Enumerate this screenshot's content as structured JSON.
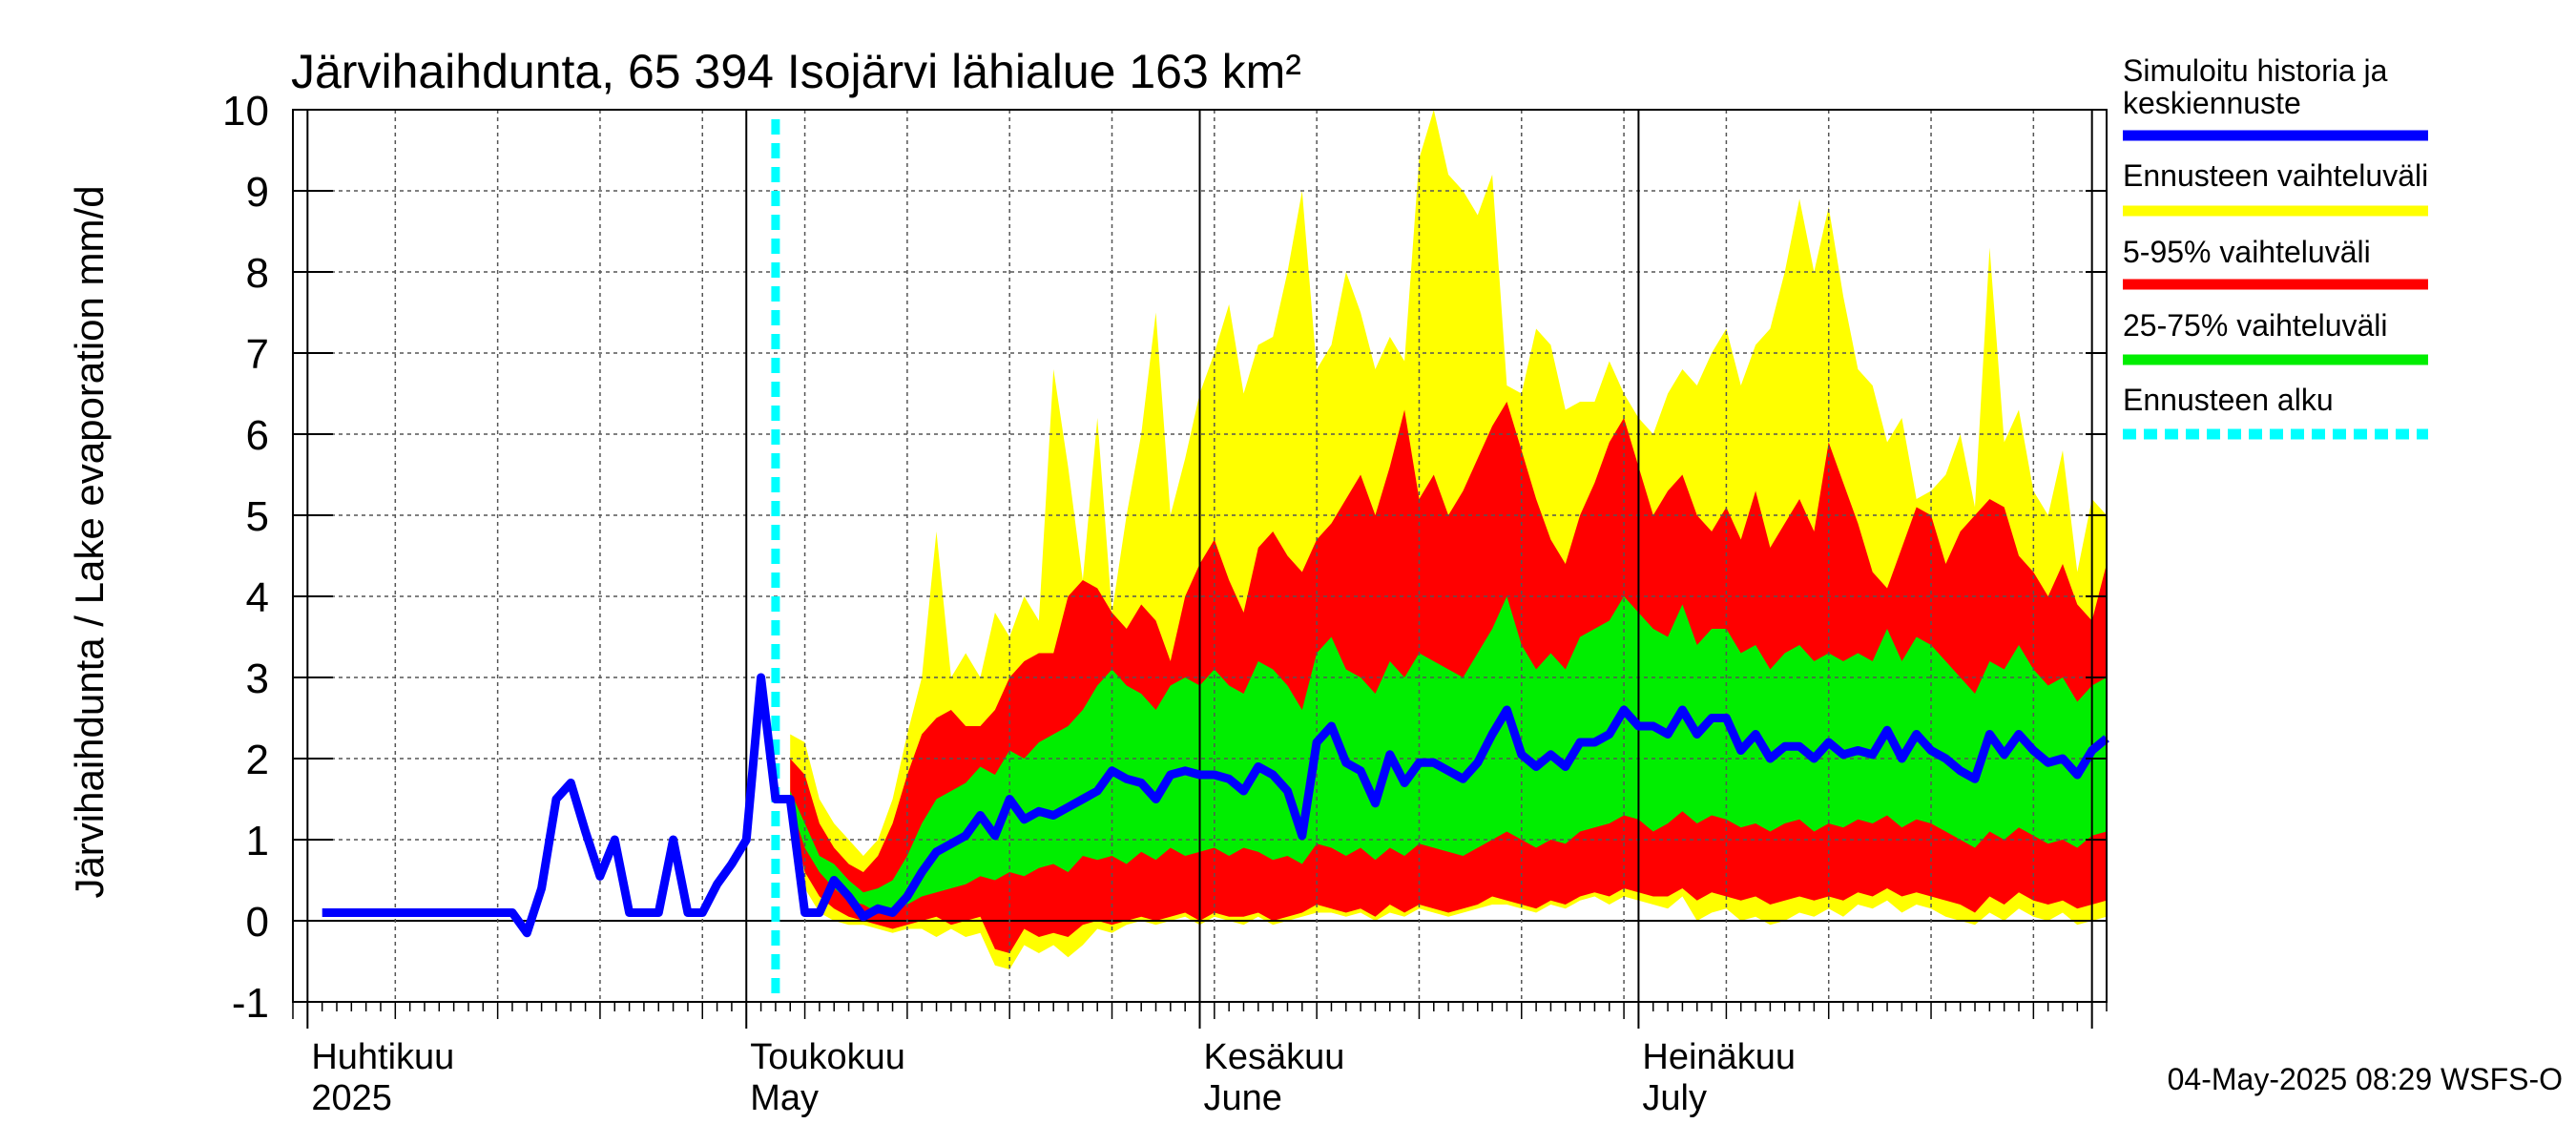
{
  "chart_data": {
    "type": "area",
    "title": "Järvihaihdunta, 65 394 Isojärvi lähialue 163 km²",
    "ylabel": "Järvihaihdunta / Lake evaporation   mm/d",
    "ylim": [
      -1,
      10
    ],
    "yticks": [
      -1,
      0,
      1,
      2,
      3,
      4,
      5,
      6,
      7,
      8,
      9,
      10
    ],
    "x_start": "2025-03-31",
    "x_end": "2025-08-02",
    "forecast_start": "2025-05-04",
    "month_labels": [
      {
        "date": "2025-04-01",
        "line1": "Huhtikuu",
        "line2": "2025"
      },
      {
        "date": "2025-05-01",
        "line1": "Toukokuu",
        "line2": "May"
      },
      {
        "date": "2025-06-01",
        "line1": "Kesäkuu",
        "line2": "June"
      },
      {
        "date": "2025-07-01",
        "line1": "Heinäkuu",
        "line2": "July"
      }
    ],
    "history": {
      "name": "Simuloitu historia ja keskiennuste",
      "values": [
        0.1,
        0.1,
        0.1,
        0.1,
        0.1,
        0.1,
        0.1,
        0.1,
        0.1,
        0.1,
        0.1,
        0.1,
        0.1,
        0.1,
        -0.15,
        0.4,
        1.5,
        1.7,
        1.1,
        0.55,
        1.0,
        0.1,
        0.1,
        0.1,
        1.0,
        0.1,
        0.1,
        0.45,
        0.7,
        1.0,
        3.0,
        1.5
      ]
    },
    "forecast": {
      "median": [
        1.5,
        0.1,
        0.1,
        0.5,
        0.3,
        0.05,
        0.15,
        0.1,
        0.3,
        0.6,
        0.85,
        0.95,
        1.05,
        1.3,
        1.05,
        1.5,
        1.25,
        1.35,
        1.3,
        1.4,
        1.5,
        1.6,
        1.85,
        1.75,
        1.7,
        1.5,
        1.8,
        1.85,
        1.8,
        1.8,
        1.75,
        1.6,
        1.9,
        1.8,
        1.6,
        1.05,
        2.2,
        2.4,
        1.95,
        1.85,
        1.45,
        2.05,
        1.7,
        1.95,
        1.95,
        1.85,
        1.75,
        1.95,
        2.3,
        2.6,
        2.05,
        1.9,
        2.05,
        1.9,
        2.2,
        2.2,
        2.3,
        2.6,
        2.4,
        2.4,
        2.3,
        2.6,
        2.3,
        2.5,
        2.5,
        2.1,
        2.3,
        2.0,
        2.15,
        2.15,
        2.0,
        2.2,
        2.05,
        2.1,
        2.05,
        2.35,
        2.0,
        2.3,
        2.1,
        2.0,
        1.85,
        1.75,
        2.3,
        2.05,
        2.3,
        2.1,
        1.95,
        2.0,
        1.8,
        2.1,
        2.25
      ],
      "p25": [
        1.45,
        0.9,
        0.6,
        0.4,
        0.25,
        0.2,
        0.1,
        0.15,
        0.2,
        0.3,
        0.35,
        0.4,
        0.45,
        0.55,
        0.5,
        0.6,
        0.55,
        0.65,
        0.7,
        0.6,
        0.8,
        0.75,
        0.8,
        0.7,
        0.85,
        0.75,
        0.9,
        0.8,
        0.85,
        0.9,
        0.8,
        0.9,
        0.85,
        0.75,
        0.8,
        0.7,
        0.95,
        0.9,
        0.8,
        0.9,
        0.75,
        0.9,
        0.8,
        0.95,
        0.9,
        0.85,
        0.8,
        0.9,
        1.0,
        1.1,
        1.0,
        0.9,
        1.0,
        0.95,
        1.1,
        1.15,
        1.2,
        1.3,
        1.25,
        1.1,
        1.2,
        1.35,
        1.2,
        1.3,
        1.25,
        1.15,
        1.2,
        1.1,
        1.2,
        1.25,
        1.1,
        1.2,
        1.15,
        1.25,
        1.2,
        1.3,
        1.15,
        1.25,
        1.2,
        1.1,
        1.0,
        0.9,
        1.1,
        1.0,
        1.15,
        1.05,
        0.95,
        1.0,
        0.9,
        1.05,
        1.1
      ],
      "p75": [
        1.6,
        1.2,
        0.8,
        0.7,
        0.5,
        0.35,
        0.4,
        0.5,
        0.8,
        1.2,
        1.5,
        1.6,
        1.7,
        1.9,
        1.8,
        2.1,
        2.0,
        2.2,
        2.3,
        2.4,
        2.6,
        2.9,
        3.1,
        2.9,
        2.8,
        2.6,
        2.9,
        3.0,
        2.9,
        3.1,
        2.9,
        2.8,
        3.2,
        3.1,
        2.9,
        2.6,
        3.3,
        3.5,
        3.1,
        3.0,
        2.8,
        3.2,
        3.0,
        3.3,
        3.2,
        3.1,
        3.0,
        3.3,
        3.6,
        4.0,
        3.4,
        3.1,
        3.3,
        3.1,
        3.5,
        3.6,
        3.7,
        4.0,
        3.8,
        3.6,
        3.5,
        3.9,
        3.4,
        3.6,
        3.6,
        3.3,
        3.4,
        3.1,
        3.3,
        3.4,
        3.2,
        3.3,
        3.2,
        3.3,
        3.2,
        3.6,
        3.2,
        3.5,
        3.4,
        3.2,
        3.0,
        2.8,
        3.2,
        3.1,
        3.4,
        3.1,
        2.9,
        3.0,
        2.7,
        2.9,
        3.0
      ],
      "p5": [
        1.4,
        0.6,
        0.3,
        0.15,
        0.05,
        0.0,
        -0.05,
        -0.1,
        -0.05,
        0.0,
        0.05,
        -0.05,
        0.0,
        0.05,
        -0.35,
        -0.4,
        -0.1,
        -0.2,
        -0.15,
        -0.2,
        -0.05,
        0.0,
        -0.05,
        0.0,
        0.05,
        0.0,
        0.05,
        0.1,
        0.0,
        0.1,
        0.05,
        0.05,
        0.1,
        0.0,
        0.05,
        0.1,
        0.2,
        0.15,
        0.1,
        0.15,
        0.05,
        0.2,
        0.1,
        0.2,
        0.15,
        0.1,
        0.15,
        0.2,
        0.3,
        0.25,
        0.2,
        0.15,
        0.25,
        0.2,
        0.3,
        0.35,
        0.3,
        0.4,
        0.35,
        0.3,
        0.3,
        0.4,
        0.25,
        0.35,
        0.3,
        0.25,
        0.3,
        0.2,
        0.25,
        0.3,
        0.25,
        0.3,
        0.25,
        0.35,
        0.3,
        0.4,
        0.3,
        0.35,
        0.3,
        0.25,
        0.2,
        0.1,
        0.3,
        0.2,
        0.35,
        0.25,
        0.2,
        0.25,
        0.15,
        0.2,
        0.25
      ],
      "p95": [
        2.0,
        1.8,
        1.2,
        0.9,
        0.7,
        0.6,
        0.8,
        1.2,
        1.8,
        2.3,
        2.5,
        2.6,
        2.4,
        2.4,
        2.6,
        3.0,
        3.2,
        3.3,
        3.3,
        4.0,
        4.2,
        4.1,
        3.8,
        3.6,
        3.9,
        3.7,
        3.2,
        4.0,
        4.4,
        4.7,
        4.2,
        3.8,
        4.6,
        4.8,
        4.5,
        4.3,
        4.7,
        4.9,
        5.2,
        5.5,
        5.0,
        5.6,
        6.3,
        5.2,
        5.5,
        5.0,
        5.3,
        5.7,
        6.1,
        6.4,
        5.8,
        5.2,
        4.7,
        4.4,
        5.0,
        5.4,
        5.9,
        6.2,
        5.6,
        5.0,
        5.3,
        5.5,
        5.0,
        4.8,
        5.1,
        4.7,
        5.3,
        4.6,
        4.9,
        5.2,
        4.8,
        5.9,
        5.4,
        4.9,
        4.3,
        4.1,
        4.6,
        5.1,
        5.0,
        4.4,
        4.8,
        5.0,
        5.2,
        5.1,
        4.5,
        4.3,
        4.0,
        4.4,
        3.9,
        3.7,
        4.4
      ],
      "min": [
        1.3,
        0.4,
        0.1,
        0.0,
        -0.05,
        -0.05,
        -0.1,
        -0.15,
        -0.1,
        -0.1,
        -0.2,
        -0.1,
        -0.2,
        -0.15,
        -0.55,
        -0.6,
        -0.3,
        -0.4,
        -0.3,
        -0.45,
        -0.3,
        -0.1,
        -0.15,
        -0.05,
        0.0,
        -0.05,
        0.0,
        0.05,
        -0.05,
        0.05,
        0.0,
        -0.05,
        0.05,
        -0.05,
        0.0,
        0.05,
        0.1,
        0.1,
        0.05,
        0.1,
        0.0,
        0.1,
        0.05,
        0.15,
        0.1,
        0.05,
        0.1,
        0.15,
        0.2,
        0.2,
        0.15,
        0.1,
        0.2,
        0.15,
        0.25,
        0.3,
        0.2,
        0.3,
        0.25,
        0.2,
        0.15,
        0.3,
        0.0,
        0.1,
        0.15,
        0.0,
        0.05,
        -0.05,
        0.0,
        0.1,
        0.05,
        0.15,
        0.05,
        0.2,
        0.15,
        0.25,
        0.1,
        0.2,
        0.15,
        0.05,
        0.0,
        -0.05,
        0.1,
        0.0,
        0.15,
        0.05,
        0.0,
        0.1,
        -0.05,
        0.0,
        0.05
      ],
      "max": [
        2.3,
        2.2,
        1.5,
        1.2,
        1.0,
        0.8,
        1.0,
        1.5,
        2.3,
        3.0,
        4.8,
        3.0,
        3.3,
        3.0,
        3.8,
        3.5,
        4.0,
        3.7,
        6.8,
        5.6,
        4.2,
        6.2,
        3.8,
        5.0,
        6.0,
        7.5,
        5.0,
        5.7,
        6.5,
        7.0,
        7.6,
        6.5,
        7.1,
        7.2,
        8.0,
        9.0,
        6.8,
        7.1,
        8.0,
        7.5,
        6.8,
        7.2,
        6.9,
        9.4,
        10.0,
        9.2,
        9.0,
        8.7,
        9.2,
        6.6,
        6.5,
        7.3,
        7.1,
        6.3,
        6.4,
        6.4,
        6.9,
        6.5,
        6.2,
        6.0,
        6.5,
        6.8,
        6.6,
        7.0,
        7.3,
        6.6,
        7.1,
        7.3,
        8.0,
        8.9,
        8.0,
        8.8,
        7.7,
        6.8,
        6.6,
        5.9,
        6.2,
        5.2,
        5.3,
        5.5,
        6.0,
        5.1,
        8.3,
        5.9,
        6.3,
        5.3,
        5.0,
        5.8,
        4.3,
        5.2,
        5.0
      ]
    },
    "legend": [
      {
        "label": "Simuloitu historia ja keskiennuste",
        "color": "#0000ff",
        "style": "solid"
      },
      {
        "label": "Ennusteen vaihteluväli",
        "color": "#ffff00",
        "style": "solid"
      },
      {
        "label": "5-95% vaihteluväli",
        "color": "#ff0000",
        "style": "solid"
      },
      {
        "label": "25-75% vaihteluväli",
        "color": "#00ee00",
        "style": "solid"
      },
      {
        "label": "Ennusteen alku",
        "color": "#00ffff",
        "style": "dashed"
      }
    ],
    "legend_position": "right",
    "grid": true,
    "colors": {
      "median": "#0000ff",
      "range": "#ffff00",
      "p5_95": "#ff0000",
      "p25_75": "#00ee00",
      "forecast_start": "#00ffff"
    }
  },
  "footer": "04-May-2025 08:29 WSFS-O"
}
